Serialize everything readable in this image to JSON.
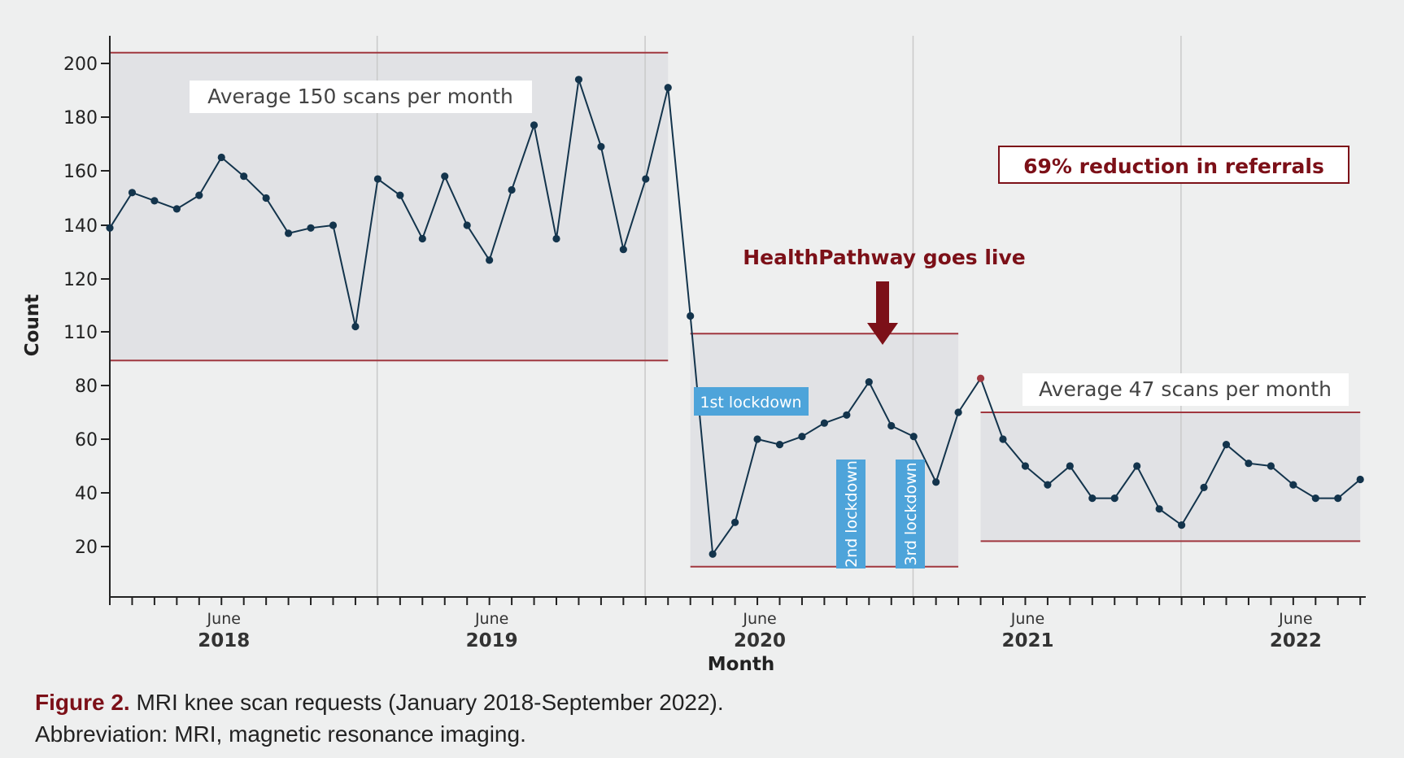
{
  "chart_data": {
    "type": "line",
    "xlabel": "Month",
    "ylabel": "Count",
    "yticks": [
      20,
      40,
      60,
      80,
      110,
      120,
      140,
      160,
      180,
      200
    ],
    "x_tick_labels": [
      {
        "month": "June",
        "year": "2018"
      },
      {
        "month": "June",
        "year": "2019"
      },
      {
        "month": "June",
        "year": "2020"
      },
      {
        "month": "June",
        "year": "2021"
      },
      {
        "month": "June",
        "year": "2022"
      }
    ],
    "series": [
      {
        "name": "MRI knee scan requests",
        "start": "2018-01",
        "values": [
          139,
          152,
          149,
          146,
          151,
          165,
          158,
          150,
          137,
          139,
          140,
          111,
          157,
          151,
          135,
          158,
          140,
          127,
          153,
          177,
          135,
          194,
          169,
          131,
          157,
          191,
          113,
          17,
          29,
          60,
          58,
          61,
          66,
          69,
          82,
          65,
          61,
          44,
          70,
          84,
          60,
          50,
          43,
          50,
          38,
          38,
          50,
          34,
          28,
          42,
          58,
          51,
          50,
          43,
          38,
          38,
          45
        ]
      }
    ],
    "highlight_index": 39,
    "phases": [
      {
        "label": "Average 150 scans per month",
        "from": 0,
        "to": 25,
        "upper": 204,
        "lower": 94
      },
      {
        "label": "",
        "from": 26,
        "to": 38,
        "upper": 109,
        "lower": 12
      },
      {
        "label": "Average 47 scans per month",
        "from": 39,
        "to": 56,
        "upper": 70,
        "lower": 22
      }
    ],
    "annotations": {
      "reduction": "69% reduction in referrals",
      "go_live": "HealthPathway goes live",
      "lockdown1": "1st lockdown",
      "lockdown2": "2nd lockdown",
      "lockdown3": "3rd lockdown"
    }
  },
  "colors": {
    "line": "#13344c",
    "limit": "#a0373f",
    "accent": "#7c1018",
    "lockdown": "#4ea4da",
    "band": "#e1e2e5",
    "grid": "#c9c9c9"
  },
  "caption": {
    "label": "Figure 2.",
    "text": " MRI knee scan requests (January 2018-September 2022).",
    "abbreviation": "Abbreviation: MRI, magnetic resonance imaging."
  }
}
